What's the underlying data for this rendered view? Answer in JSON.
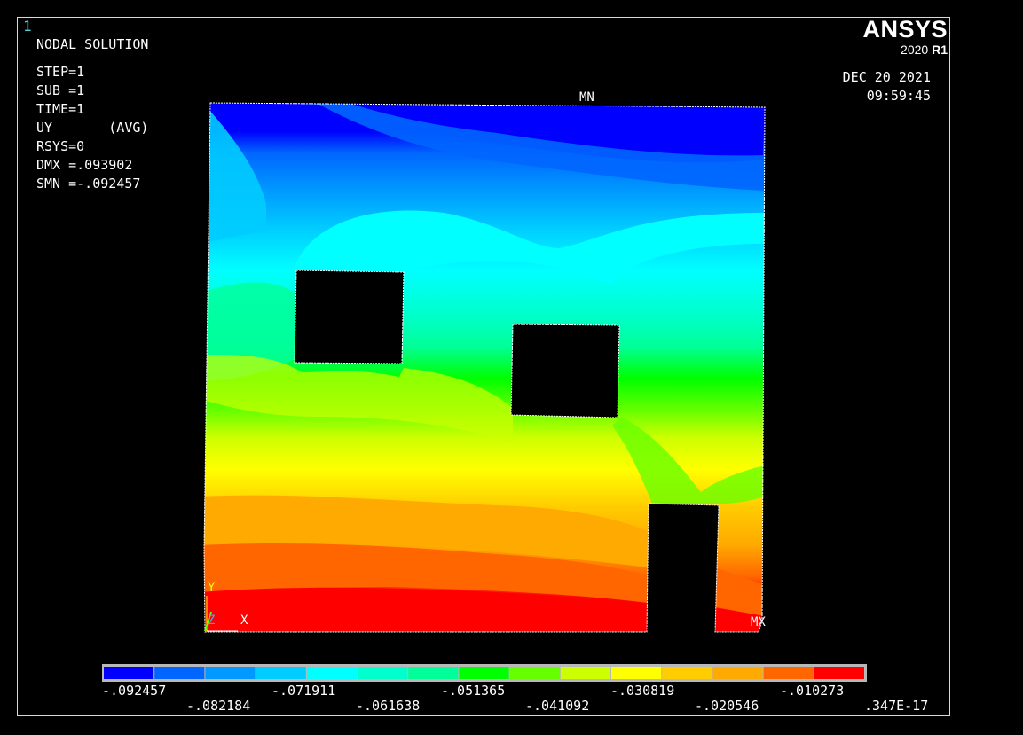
{
  "window_number": "1",
  "title": "NODAL SOLUTION",
  "info_lines": [
    "STEP=1",
    "SUB =1",
    "TIME=1",
    "UY       (AVG)",
    "RSYS=0",
    "DMX =.093902",
    "SMN =-.092457"
  ],
  "brand": {
    "name": "ANSYS",
    "version_prefix": "2020 ",
    "version_suffix": "R1"
  },
  "date": "DEC 20 2021",
  "time": "09:59:45",
  "min_label": "MN",
  "max_label": "MX",
  "axes": {
    "y": "Y",
    "z": "Z",
    "x": "X"
  },
  "legend": {
    "colors": [
      "#0000ff",
      "#0066ff",
      "#0099ff",
      "#00ccff",
      "#00ffff",
      "#00ffcc",
      "#00ff99",
      "#00ff00",
      "#66ff00",
      "#ccff00",
      "#ffff00",
      "#ffcc00",
      "#ffaa00",
      "#ff6600",
      "#ff0000"
    ],
    "labels_upper": [
      "-.092457",
      "-.071911",
      "-.051365",
      "-.030819",
      "-.010273"
    ],
    "labels_lower": [
      "-.082184",
      "-.061638",
      "-.041092",
      "-.020546",
      ".347E-17"
    ]
  }
}
